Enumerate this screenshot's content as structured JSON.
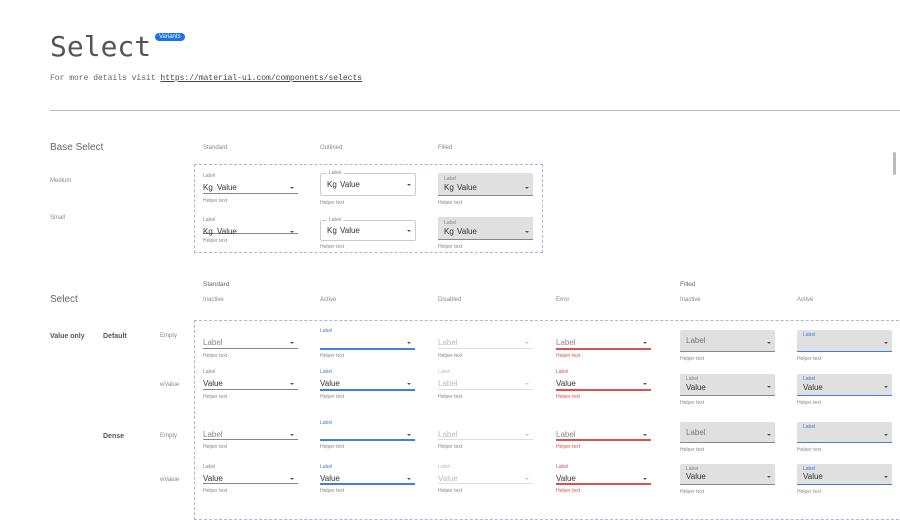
{
  "header": {
    "title": "Select",
    "badge": "Variants",
    "subtitle_prefix": "For more details visit ",
    "link": "https://material-ui.com/components/selects"
  },
  "colors": {
    "active": "#3f7fe0",
    "error": "#e05050",
    "filled_bg": "#e0e0e0"
  },
  "base": {
    "title": "Base Select",
    "columns": [
      "Standard",
      "Outlined",
      "Filled"
    ],
    "rows": [
      "Medium",
      "Small"
    ],
    "label": "Label",
    "prefix": "Kg",
    "value": "Value",
    "helper": "Helper text"
  },
  "select": {
    "title": "Select",
    "group_standard": "Standard",
    "group_filled": "Filled",
    "columns": [
      "Inactive",
      "Active",
      "Disabled",
      "Error",
      "Inactive",
      "Active"
    ],
    "row_group": "Value only",
    "subgroups": [
      "Default",
      "Dense"
    ],
    "row_labels": [
      "Empty",
      "wValue",
      "Empty",
      "wValue"
    ],
    "label": "Label",
    "value": "Value",
    "helper": "Helper text"
  }
}
